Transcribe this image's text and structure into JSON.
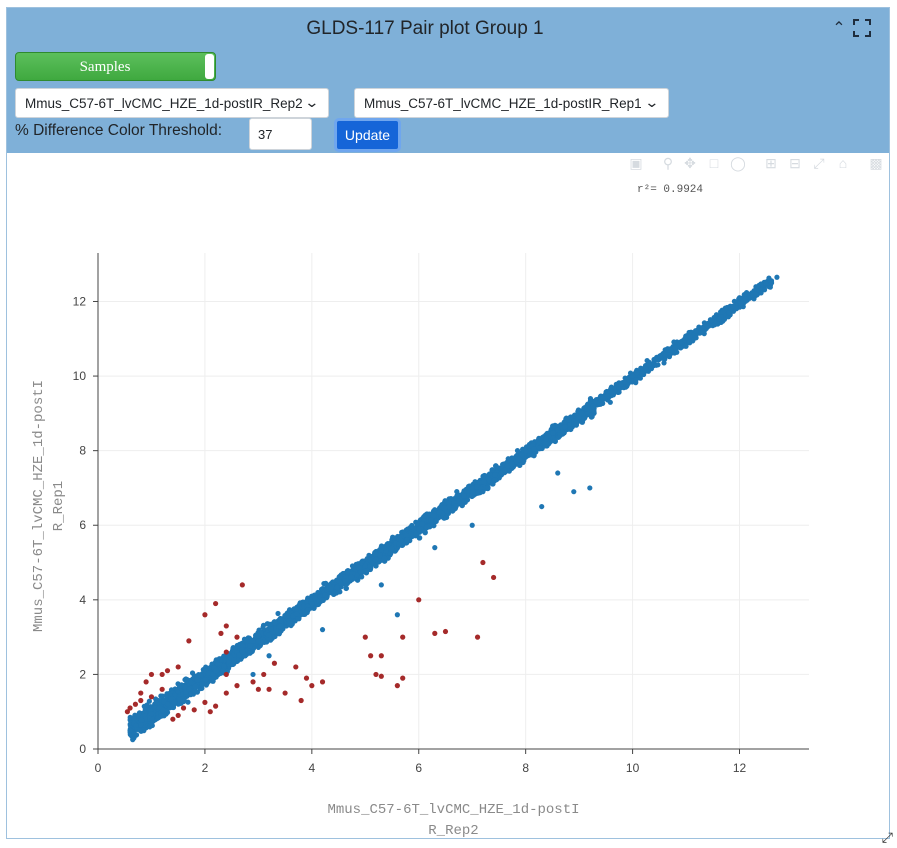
{
  "title": "GLDS-117 Pair plot Group 1",
  "samples_toggle": {
    "label": "Samples"
  },
  "selects": {
    "x_sample": "Mmus_C57-6T_lvCMC_HZE_1d-postIR_Rep2",
    "y_sample": "Mmus_C57-6T_lvCMC_HZE_1d-postIR_Rep1"
  },
  "threshold": {
    "label": "% Difference Color Threshold:",
    "value": "37"
  },
  "update_button": "Update",
  "r2_text": "r²= 0.9924",
  "colors": {
    "header": "#7fb0d8",
    "normal_points": "#1f77b4",
    "outlier_points": "#a52a2a",
    "toggle": "#4cb84c",
    "button": "#1565d8"
  },
  "chart_data": {
    "type": "scatter",
    "title": "",
    "xlabel": "Mmus_C57-6T_lvCMC_HZE_1d-postI R_Rep2",
    "ylabel": "Mmus_C57-6T_lvCMC_HZE_1d-postI R_Rep1",
    "xlabel_lines": [
      "Mmus_C57-6T_lvCMC_HZE_1d-postI",
      "R_Rep2"
    ],
    "ylabel_lines": [
      "Mmus_C57-6T_lvCMC_HZE_1d-postI",
      "R_Rep1"
    ],
    "xlim": [
      0,
      13.3
    ],
    "ylim": [
      0,
      13.3
    ],
    "xticks": [
      0,
      2,
      4,
      6,
      8,
      10,
      12
    ],
    "yticks": [
      0,
      2,
      4,
      6,
      8,
      10,
      12
    ],
    "grid": true,
    "annotation": "r²= 0.9924",
    "series": [
      {
        "role": "within-threshold",
        "color": "#1f77b4",
        "shape": "dense diagonal cloud from ~0.6 to ~12.7",
        "points": [
          [
            0.6,
            0.5
          ],
          [
            0.8,
            0.65
          ],
          [
            1.0,
            0.95
          ],
          [
            1.3,
            1.2
          ],
          [
            1.7,
            1.6
          ],
          [
            2.2,
            2.1
          ],
          [
            3.0,
            2.9
          ],
          [
            4.0,
            3.9
          ],
          [
            5.0,
            4.9
          ],
          [
            6.0,
            5.9
          ],
          [
            7.0,
            7.0
          ],
          [
            8.0,
            8.0
          ],
          [
            9.0,
            8.9
          ],
          [
            10.0,
            10.0
          ],
          [
            11.0,
            10.8
          ],
          [
            12.0,
            12.1
          ],
          [
            12.3,
            12.2
          ],
          [
            12.6,
            12.5
          ],
          [
            12.7,
            12.65
          ],
          [
            7.2,
            6.9
          ],
          [
            8.9,
            6.9
          ],
          [
            8.3,
            6.5
          ],
          [
            9.2,
            7.0
          ],
          [
            5.3,
            4.4
          ],
          [
            6.3,
            5.4
          ],
          [
            7.0,
            6.0
          ],
          [
            8.6,
            7.4
          ],
          [
            4.2,
            3.2
          ],
          [
            2.9,
            2.0
          ],
          [
            3.2,
            2.5
          ],
          [
            5.6,
            3.6
          ]
        ]
      },
      {
        "role": "above-threshold",
        "color": "#a52a2a",
        "points": [
          [
            0.55,
            1.0
          ],
          [
            0.7,
            1.2
          ],
          [
            0.8,
            1.5
          ],
          [
            0.9,
            1.8
          ],
          [
            1.0,
            2.0
          ],
          [
            1.2,
            2.0
          ],
          [
            1.3,
            2.1
          ],
          [
            1.5,
            2.2
          ],
          [
            0.6,
            1.1
          ],
          [
            1.0,
            1.4
          ],
          [
            1.2,
            1.6
          ],
          [
            0.8,
            1.3
          ],
          [
            2.4,
            2.6
          ],
          [
            2.6,
            3.0
          ],
          [
            2.0,
            3.6
          ],
          [
            2.2,
            3.9
          ],
          [
            2.7,
            4.4
          ],
          [
            2.4,
            3.3
          ],
          [
            2.3,
            3.1
          ],
          [
            1.7,
            2.9
          ],
          [
            1.4,
            0.8
          ],
          [
            1.5,
            0.9
          ],
          [
            1.6,
            1.1
          ],
          [
            1.8,
            1.05
          ],
          [
            2.0,
            1.25
          ],
          [
            2.2,
            1.15
          ],
          [
            2.1,
            1.0
          ],
          [
            2.4,
            1.5
          ],
          [
            2.6,
            1.7
          ],
          [
            2.9,
            1.8
          ],
          [
            3.0,
            1.6
          ],
          [
            3.1,
            2.0
          ],
          [
            3.3,
            2.3
          ],
          [
            3.2,
            1.6
          ],
          [
            3.5,
            1.5
          ],
          [
            3.8,
            1.3
          ],
          [
            4.0,
            1.7
          ],
          [
            4.2,
            1.8
          ],
          [
            5.0,
            3.0
          ],
          [
            5.1,
            2.5
          ],
          [
            5.3,
            2.5
          ],
          [
            5.2,
            2.0
          ],
          [
            5.3,
            1.95
          ],
          [
            5.6,
            1.7
          ],
          [
            5.7,
            1.9
          ],
          [
            6.0,
            4.0
          ],
          [
            6.3,
            3.1
          ],
          [
            5.7,
            3.0
          ],
          [
            3.9,
            1.9
          ],
          [
            3.7,
            2.2
          ],
          [
            2.4,
            2.0
          ],
          [
            7.1,
            3.0
          ],
          [
            6.5,
            3.15
          ],
          [
            7.4,
            4.6
          ],
          [
            7.2,
            5.0
          ]
        ]
      }
    ]
  }
}
